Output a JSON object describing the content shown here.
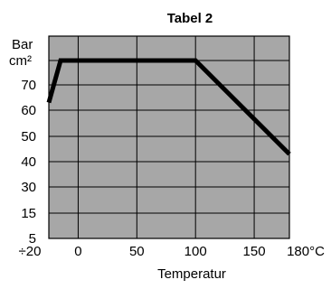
{
  "chart_data": {
    "type": "line",
    "title": "Tabel 2",
    "xlabel": "Temperatur",
    "ylabel": [
      "Bar",
      "cm²"
    ],
    "x_tick_labels": [
      "÷20",
      "0",
      "50",
      "100",
      "150",
      "180°C"
    ],
    "x_ticks": [
      -20,
      0,
      50,
      100,
      150,
      180
    ],
    "y_tick_labels": [
      "5",
      "15",
      "30",
      "40",
      "50",
      "60",
      "70"
    ],
    "y_ticks": [
      5,
      15,
      30,
      40,
      50,
      60,
      70
    ],
    "xlim": [
      -25,
      180
    ],
    "ylim": [
      5,
      90
    ],
    "grid": true,
    "series": [
      {
        "x": [
          -25,
          -15,
          100,
          180
        ],
        "y": [
          63,
          80,
          80,
          43
        ]
      }
    ],
    "colors": {
      "plot_background": "#a7a7a7",
      "line": "#000000",
      "grid": "#000000"
    }
  }
}
